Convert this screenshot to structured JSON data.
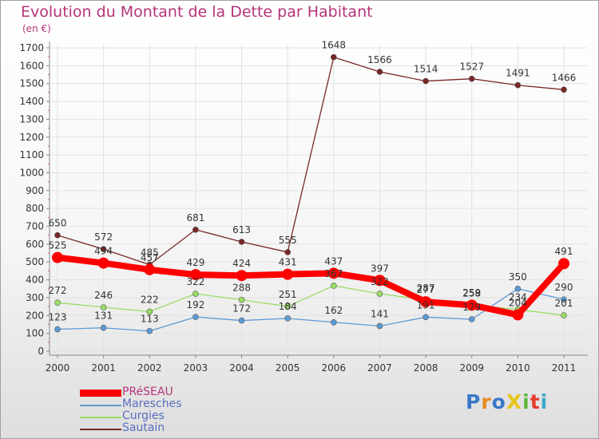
{
  "title": "Evolution du Montant de la Dette par Habitant",
  "subtitle": "(en €)",
  "logo": {
    "text": "ProXiti",
    "colors": [
      "#3a78c8",
      "#e88a1c",
      "#3a78c8",
      "#e8c51c",
      "#5fb83a",
      "#e23a2c",
      "#3aa8c8"
    ]
  },
  "chart_data": {
    "type": "line",
    "x": [
      "2000",
      "2001",
      "2002",
      "2003",
      "2004",
      "2005",
      "2006",
      "2007",
      "2008",
      "2009",
      "2010",
      "2011"
    ],
    "ylim": [
      0,
      1700
    ],
    "yticks": [
      0,
      100,
      200,
      300,
      400,
      500,
      600,
      700,
      800,
      900,
      1000,
      1100,
      1200,
      1300,
      1400,
      1500,
      1600,
      1700
    ],
    "grid": true,
    "legend_position": "bottom-left",
    "series": [
      {
        "name": "Sautain",
        "color": "#7a2626",
        "values": [
          650,
          572,
          485,
          681,
          613,
          555,
          1648,
          1566,
          1514,
          1527,
          1491,
          1466
        ]
      },
      {
        "name": "Curgies",
        "color": "#99dd66",
        "values": [
          272,
          246,
          222,
          322,
          288,
          251,
          367,
          322,
          287,
          259,
          234,
          201
        ]
      },
      {
        "name": "Maresches",
        "color": "#5b9bd5",
        "values": [
          123,
          131,
          113,
          192,
          172,
          184,
          162,
          141,
          191,
          179,
          350,
          290
        ]
      },
      {
        "name": "PRéSEAU",
        "color": "#ff0000",
        "values": [
          525,
          494,
          457,
          429,
          424,
          431,
          437,
          397,
          277,
          258,
          204,
          491
        ]
      }
    ],
    "legend": [
      {
        "name": "PRéSEAU",
        "color": "#ff0000"
      },
      {
        "name": "Maresches",
        "color": "#5b9bd5"
      },
      {
        "name": "Curgies",
        "color": "#99dd66"
      },
      {
        "name": "Sautain",
        "color": "#7a2626"
      }
    ]
  }
}
